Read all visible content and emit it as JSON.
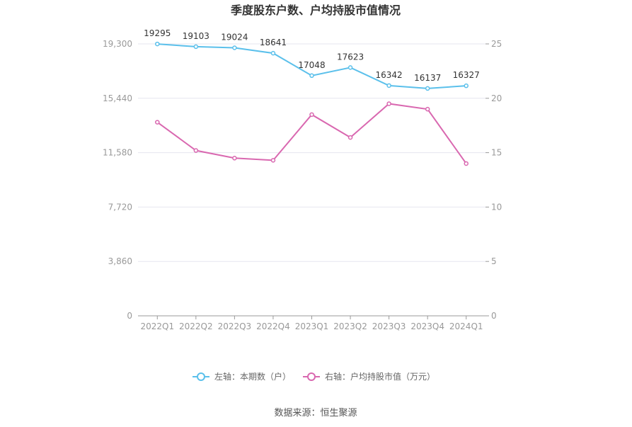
{
  "chart_data": {
    "type": "line",
    "title": "季度股东户数、户均持股市值情况",
    "categories": [
      "2022Q1",
      "2022Q2",
      "2022Q3",
      "2022Q4",
      "2023Q1",
      "2023Q2",
      "2023Q3",
      "2023Q4",
      "2024Q1"
    ],
    "left_axis": {
      "ticks": [
        "0",
        "3,860",
        "7,720",
        "11,580",
        "15,440",
        "19,300"
      ],
      "ylim": [
        0,
        19300
      ]
    },
    "right_axis": {
      "ticks": [
        "0",
        "5",
        "10",
        "15",
        "20",
        "25"
      ],
      "ylim": [
        0,
        25
      ]
    },
    "series": [
      {
        "name": "左轴：本期数（户）",
        "axis": "left",
        "color": "#5bc0eb",
        "values": [
          19295,
          19103,
          19024,
          18641,
          17048,
          17623,
          16342,
          16137,
          16327
        ],
        "labels": [
          "19295",
          "19103",
          "19024",
          "18641",
          "17048",
          "17623",
          "16342",
          "16137",
          "16327"
        ]
      },
      {
        "name": "右轴：户均持股市值（万元）",
        "axis": "right",
        "color": "#d968b0",
        "values": [
          17.8,
          15.2,
          14.5,
          14.3,
          18.5,
          16.4,
          19.5,
          19.0,
          14.0
        ]
      }
    ],
    "grid": true,
    "legend": "bottom",
    "source": "数据来源：恒生聚源"
  }
}
